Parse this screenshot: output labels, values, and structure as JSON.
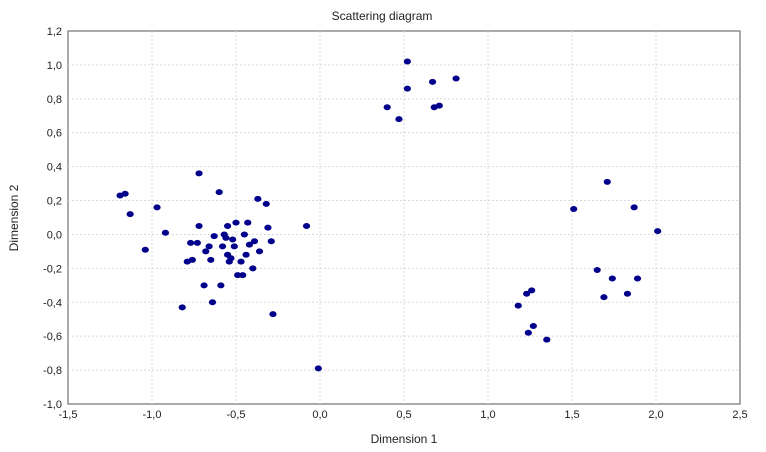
{
  "chart_data": {
    "type": "scatter",
    "title": "Scattering diagram",
    "xlabel": "Dimension 1",
    "ylabel": "Dimension 2",
    "xlim": [
      -1.5,
      2.5
    ],
    "ylim": [
      -1.0,
      1.2
    ],
    "xticks": [
      "-1,5",
      "-1,0",
      "-0,5",
      "0,0",
      "0,5",
      "1,0",
      "1,5",
      "2,0",
      "2,5"
    ],
    "yticks": [
      "1,2",
      "1,0",
      "0,8",
      "0,6",
      "0,4",
      "0,2",
      "0,0",
      "-0,2",
      "-0,4",
      "-0,6",
      "-0,8",
      "-1,0"
    ],
    "grid": true,
    "marker_color": "#00008b",
    "series": [
      {
        "points": [
          [
            -1.19,
            0.23
          ],
          [
            -1.16,
            0.24
          ],
          [
            -1.13,
            0.12
          ],
          [
            -1.04,
            -0.09
          ],
          [
            -0.97,
            0.16
          ],
          [
            -0.92,
            0.01
          ],
          [
            -0.82,
            -0.43
          ],
          [
            -0.79,
            -0.16
          ],
          [
            -0.77,
            -0.05
          ],
          [
            -0.76,
            -0.15
          ],
          [
            -0.73,
            -0.05
          ],
          [
            -0.72,
            0.36
          ],
          [
            -0.72,
            0.05
          ],
          [
            -0.69,
            -0.3
          ],
          [
            -0.68,
            -0.1
          ],
          [
            -0.66,
            -0.07
          ],
          [
            -0.65,
            -0.15
          ],
          [
            -0.64,
            -0.4
          ],
          [
            -0.63,
            -0.01
          ],
          [
            -0.6,
            0.25
          ],
          [
            -0.59,
            -0.3
          ],
          [
            -0.58,
            -0.07
          ],
          [
            -0.57,
            0.0
          ],
          [
            -0.56,
            -0.02
          ],
          [
            -0.55,
            0.05
          ],
          [
            -0.55,
            -0.12
          ],
          [
            -0.54,
            -0.16
          ],
          [
            -0.53,
            -0.14
          ],
          [
            -0.52,
            -0.03
          ],
          [
            -0.51,
            -0.07
          ],
          [
            -0.5,
            0.07
          ],
          [
            -0.49,
            -0.24
          ],
          [
            -0.47,
            -0.16
          ],
          [
            -0.46,
            -0.24
          ],
          [
            -0.45,
            0.0
          ],
          [
            -0.44,
            -0.12
          ],
          [
            -0.43,
            0.07
          ],
          [
            -0.42,
            -0.06
          ],
          [
            -0.4,
            -0.2
          ],
          [
            -0.39,
            -0.04
          ],
          [
            -0.37,
            0.21
          ],
          [
            -0.36,
            -0.1
          ],
          [
            -0.32,
            0.18
          ],
          [
            -0.31,
            0.04
          ],
          [
            -0.29,
            -0.04
          ],
          [
            -0.28,
            -0.47
          ],
          [
            -0.08,
            0.05
          ],
          [
            -0.01,
            -0.79
          ],
          [
            0.4,
            0.75
          ],
          [
            0.47,
            0.68
          ],
          [
            0.52,
            1.02
          ],
          [
            0.52,
            0.86
          ],
          [
            0.67,
            0.9
          ],
          [
            0.68,
            0.75
          ],
          [
            0.71,
            0.76
          ],
          [
            0.81,
            0.92
          ],
          [
            1.18,
            -0.42
          ],
          [
            1.23,
            -0.35
          ],
          [
            1.24,
            -0.58
          ],
          [
            1.26,
            -0.33
          ],
          [
            1.27,
            -0.54
          ],
          [
            1.35,
            -0.62
          ],
          [
            1.51,
            0.15
          ],
          [
            1.65,
            -0.21
          ],
          [
            1.69,
            -0.37
          ],
          [
            1.71,
            0.31
          ],
          [
            1.74,
            -0.26
          ],
          [
            1.83,
            -0.35
          ],
          [
            1.87,
            0.16
          ],
          [
            1.89,
            -0.26
          ],
          [
            2.01,
            0.02
          ]
        ]
      }
    ]
  }
}
